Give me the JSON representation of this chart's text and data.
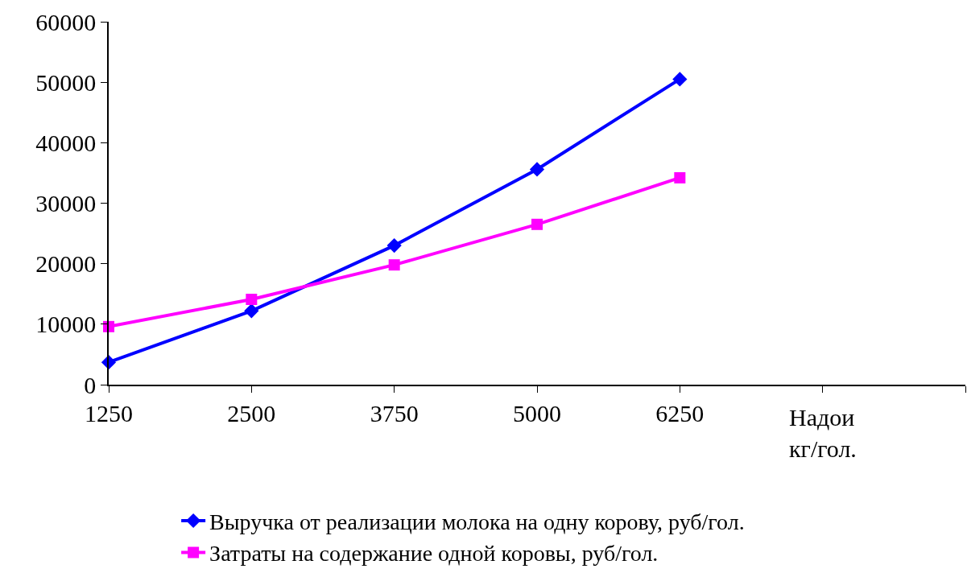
{
  "chart_data": {
    "type": "line",
    "xlabel": "Надои\nкг/гол.",
    "categories": [
      "1250",
      "2500",
      "3750",
      "5000",
      "6250",
      null,
      null
    ],
    "series": [
      {
        "name": "Выручка от реализации молока на одну корову, руб/гол.",
        "color": "#0000ff",
        "marker": "diamond",
        "values": [
          3700,
          12200,
          23000,
          35600,
          50500,
          null,
          null
        ]
      },
      {
        "name": "Затраты на содержание одной коровы, руб/гол.",
        "color": "#ff00ff",
        "marker": "square",
        "values": [
          9600,
          14100,
          19800,
          26500,
          34200,
          null,
          null
        ]
      }
    ],
    "ylim": [
      0,
      60000
    ],
    "yticks": [
      0,
      10000,
      20000,
      30000,
      40000,
      50000,
      60000
    ],
    "legend": "bottom",
    "line_style": "solid"
  }
}
